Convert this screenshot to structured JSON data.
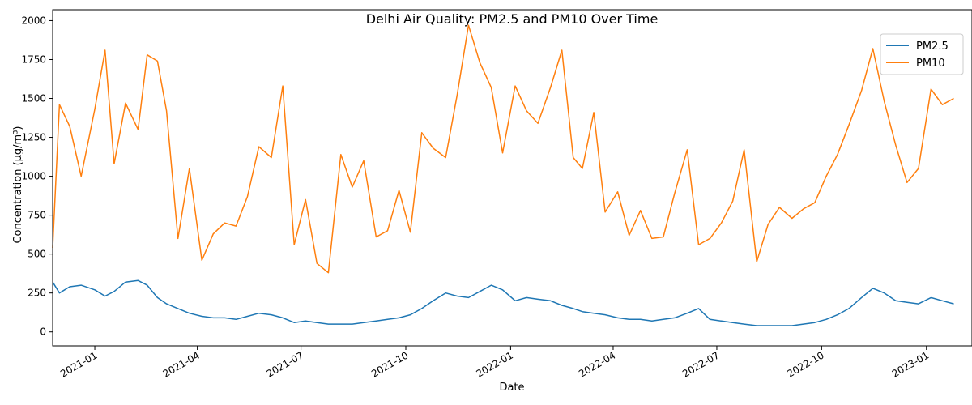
{
  "chart_data": {
    "type": "line",
    "title": "Delhi Air Quality: PM2.5 and PM10 Over Time",
    "xlabel": "Date",
    "ylabel": "Concentration (µg/m³)",
    "xlim": [
      "2020-11-25",
      "2023-02-10"
    ],
    "ylim": [
      -90,
      2070
    ],
    "x_ticks": [
      "2021-01",
      "2021-04",
      "2021-07",
      "2021-10",
      "2022-01",
      "2022-04",
      "2022-07",
      "2022-10",
      "2023-01"
    ],
    "y_ticks": [
      0,
      250,
      500,
      750,
      1000,
      1250,
      1500,
      1750,
      2000
    ],
    "grid": false,
    "legend": "top-right",
    "x": [
      "2020-11-25",
      "2020-12-01",
      "2020-12-10",
      "2020-12-20",
      "2021-01-01",
      "2021-01-10",
      "2021-01-18",
      "2021-01-28",
      "2021-02-08",
      "2021-02-16",
      "2021-02-25",
      "2021-03-05",
      "2021-03-15",
      "2021-03-25",
      "2021-04-05",
      "2021-04-15",
      "2021-04-25",
      "2021-05-05",
      "2021-05-15",
      "2021-05-25",
      "2021-06-05",
      "2021-06-15",
      "2021-06-25",
      "2021-07-05",
      "2021-07-15",
      "2021-07-25",
      "2021-08-05",
      "2021-08-15",
      "2021-08-25",
      "2021-09-05",
      "2021-09-15",
      "2021-09-25",
      "2021-10-05",
      "2021-10-15",
      "2021-10-25",
      "2021-11-05",
      "2021-11-15",
      "2021-11-25",
      "2021-12-05",
      "2021-12-15",
      "2021-12-25",
      "2022-01-05",
      "2022-01-15",
      "2022-01-25",
      "2022-02-05",
      "2022-02-15",
      "2022-02-25",
      "2022-03-05",
      "2022-03-15",
      "2022-03-25",
      "2022-04-05",
      "2022-04-15",
      "2022-04-25",
      "2022-05-05",
      "2022-05-15",
      "2022-05-25",
      "2022-06-05",
      "2022-06-15",
      "2022-06-25",
      "2022-07-05",
      "2022-07-15",
      "2022-07-25",
      "2022-08-05",
      "2022-08-15",
      "2022-08-25",
      "2022-09-05",
      "2022-09-15",
      "2022-09-25",
      "2022-10-05",
      "2022-10-15",
      "2022-10-25",
      "2022-11-05",
      "2022-11-15",
      "2022-11-25",
      "2022-12-05",
      "2022-12-15",
      "2022-12-25",
      "2023-01-05",
      "2023-01-15",
      "2023-01-25"
    ],
    "series": [
      {
        "name": "PM2.5",
        "color": "#1f77b4",
        "values": [
          320,
          250,
          290,
          300,
          270,
          230,
          260,
          320,
          330,
          300,
          220,
          180,
          150,
          120,
          100,
          90,
          90,
          80,
          100,
          120,
          110,
          90,
          60,
          70,
          60,
          50,
          50,
          50,
          60,
          70,
          80,
          90,
          110,
          150,
          200,
          250,
          230,
          220,
          260,
          300,
          270,
          200,
          220,
          210,
          200,
          170,
          150,
          130,
          120,
          110,
          90,
          80,
          80,
          70,
          80,
          90,
          120,
          150,
          80,
          70,
          60,
          50,
          40,
          40,
          40,
          40,
          50,
          60,
          80,
          110,
          150,
          220,
          280,
          250,
          200,
          190,
          180,
          220,
          200,
          180
        ]
      },
      {
        "name": "PM10",
        "color": "#ff7f0e",
        "values": [
          540,
          1460,
          1320,
          1000,
          1430,
          1810,
          1080,
          1470,
          1300,
          1780,
          1740,
          1420,
          600,
          1050,
          460,
          630,
          700,
          680,
          870,
          1190,
          1120,
          1580,
          560,
          850,
          440,
          380,
          1140,
          930,
          1100,
          610,
          650,
          910,
          640,
          1280,
          1180,
          1120,
          1520,
          1970,
          1730,
          1570,
          1150,
          1580,
          1420,
          1340,
          1570,
          1810,
          1120,
          1050,
          1410,
          770,
          900,
          620,
          780,
          600,
          610,
          890,
          1170,
          560,
          600,
          700,
          840,
          1170,
          450,
          690,
          800,
          730,
          790,
          830,
          1000,
          1140,
          1330,
          1550,
          1820,
          1480,
          1200,
          960,
          1050,
          1560,
          1460,
          1500
        ]
      }
    ]
  }
}
